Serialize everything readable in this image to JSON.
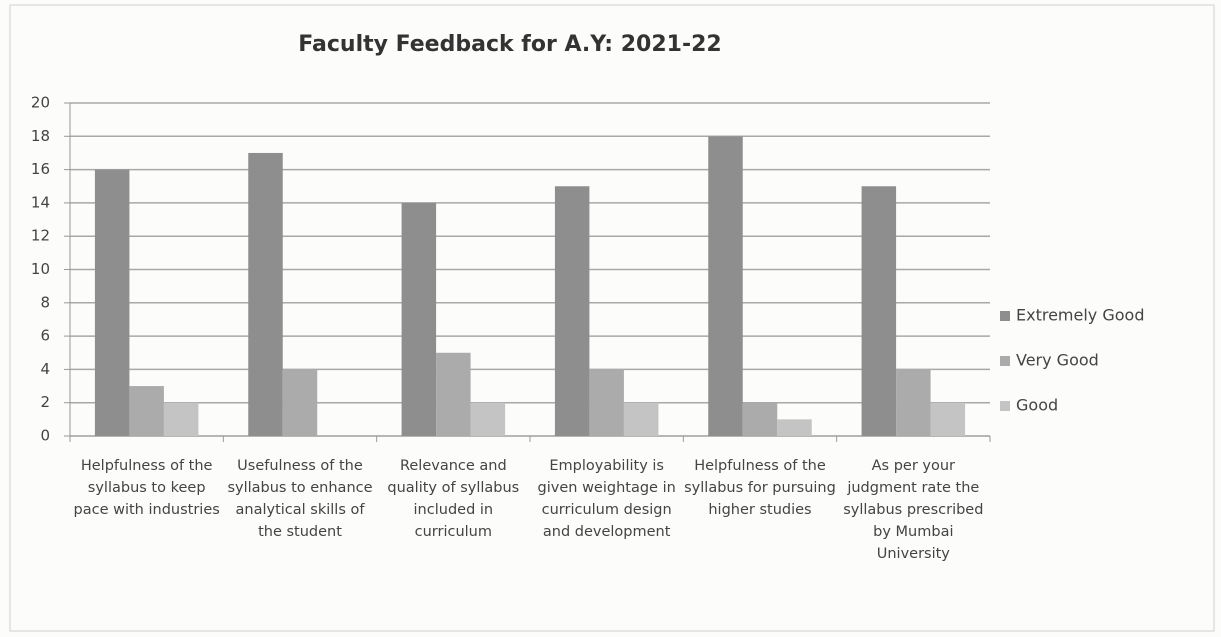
{
  "chart_data": {
    "type": "bar",
    "title": "Faculty Feedback for A.Y: 2021-22",
    "categories": [
      "Helpfulness of the syllabus to keep pace with industries",
      "Usefulness of the syllabus to enhance analytical skills of the student",
      "Relevance and quality of syllabus included in curriculum",
      "Employability is given weightage in curriculum design and development",
      "Helpfulness of the syllabus for pursuing higher studies",
      "As per your judgment rate the syllabus prescribed by Mumbai University"
    ],
    "series": [
      {
        "name": "Extremely Good",
        "color": "#8e8e8e",
        "values": [
          16,
          17,
          14,
          15,
          18,
          15
        ]
      },
      {
        "name": "Very Good",
        "color": "#ababab",
        "values": [
          3,
          4,
          5,
          4,
          2,
          4
        ]
      },
      {
        "name": "Good",
        "color": "#c4c4c4",
        "values": [
          2,
          0,
          2,
          2,
          1,
          2
        ]
      }
    ],
    "ylim": [
      0,
      20
    ],
    "yticks": [
      0,
      2,
      4,
      6,
      8,
      10,
      12,
      14,
      16,
      18,
      20
    ],
    "grid": true,
    "legend": "right"
  }
}
